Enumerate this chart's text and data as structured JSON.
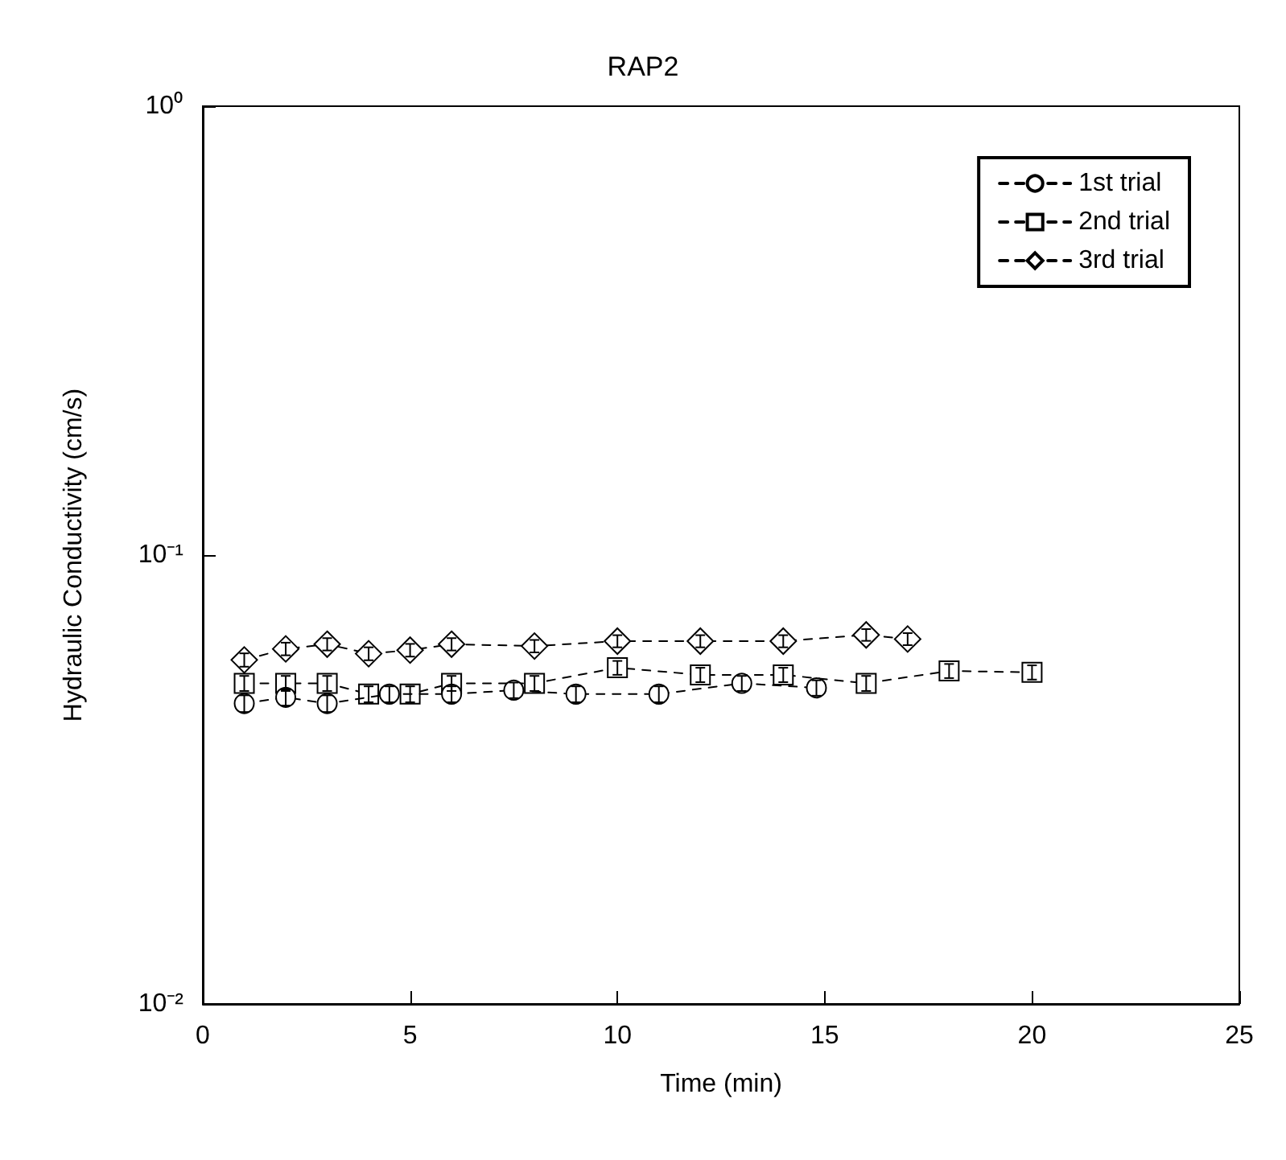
{
  "chart_data": {
    "type": "line",
    "title": "RAP2",
    "xlabel": "Time (min)",
    "ylabel": "Hydraulic Conductivity (cm/s)",
    "log": "y",
    "grid": false,
    "legend": "top right",
    "line_style": "dashed",
    "xlim": [
      0,
      25
    ],
    "xticks": [
      0,
      5,
      10,
      15,
      20,
      25
    ],
    "ylim": [
      0.01,
      1
    ],
    "yticks": [
      {
        "value": 0.01,
        "label": "10⁻²"
      },
      {
        "value": 0.1,
        "label": "10⁻¹"
      },
      {
        "value": 1,
        "label": "10⁰"
      }
    ],
    "series": [
      {
        "name": "1st trial",
        "color": "#000000",
        "marker": "circle",
        "x": [
          1,
          2,
          3,
          4.5,
          6,
          7.5,
          9,
          11,
          13,
          14.8
        ],
        "values": [
          0.0467,
          0.0482,
          0.0467,
          0.049,
          0.049,
          0.05,
          0.049,
          0.049,
          0.0518,
          0.0506
        ],
        "errors": [
          0.002,
          0.002,
          0.002,
          0.002,
          0.002,
          0.002,
          0.002,
          0.002,
          0.002,
          0.002
        ]
      },
      {
        "name": "2nd trial",
        "color": "#000000",
        "marker": "square",
        "x": [
          1,
          2,
          3,
          4,
          5,
          6,
          8,
          10,
          12,
          14,
          16,
          18,
          20
        ],
        "values": [
          0.0518,
          0.0518,
          0.0518,
          0.049,
          0.049,
          0.0518,
          0.0518,
          0.0561,
          0.0541,
          0.0541,
          0.0518,
          0.0552,
          0.0548
        ],
        "errors": [
          0.002,
          0.002,
          0.002,
          0.002,
          0.002,
          0.002,
          0.002,
          0.002,
          0.002,
          0.002,
          0.002,
          0.002,
          0.002
        ]
      },
      {
        "name": "3rd trial",
        "color": "#000000",
        "marker": "diamond",
        "x": [
          1,
          2,
          3,
          4,
          5,
          6,
          8,
          10,
          12,
          14,
          16,
          17
        ],
        "values": [
          0.0584,
          0.0618,
          0.0633,
          0.0603,
          0.0614,
          0.0633,
          0.0627,
          0.0643,
          0.0643,
          0.0643,
          0.0664,
          0.065
        ],
        "errors": [
          0.002,
          0.002,
          0.002,
          0.002,
          0.002,
          0.002,
          0.002,
          0.002,
          0.002,
          0.002,
          0.002,
          0.002
        ]
      }
    ]
  }
}
